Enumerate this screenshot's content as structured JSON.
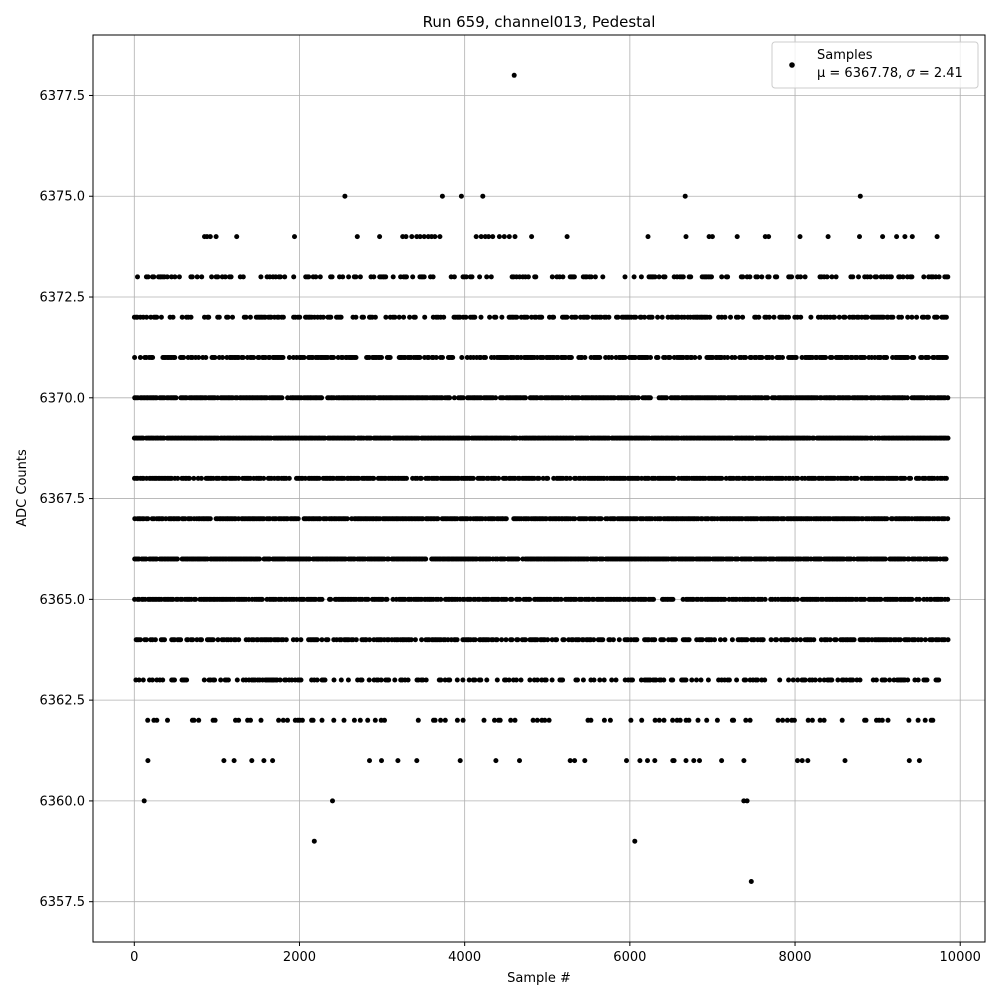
{
  "chart_data": {
    "type": "scatter",
    "title": "Run 659, channel013, Pedestal",
    "xlabel": "Sample #",
    "ylabel": "ADC Counts",
    "xlim": [
      -500,
      10300
    ],
    "ylim": [
      6356.5,
      6379.0
    ],
    "xticks": [
      0,
      2000,
      4000,
      6000,
      8000,
      10000
    ],
    "xtick_labels": [
      "0",
      "2000",
      "4000",
      "6000",
      "8000",
      "10000"
    ],
    "yticks": [
      6357.5,
      6360.0,
      6362.5,
      6365.0,
      6367.5,
      6370.0,
      6372.5,
      6375.0,
      6377.5
    ],
    "ytick_labels": [
      "6357.5",
      "6360.0",
      "6362.5",
      "6365.0",
      "6367.5",
      "6370.0",
      "6372.5",
      "6375.0",
      "6377.5"
    ],
    "grid": true,
    "legend": {
      "placement": "top-right",
      "label": "Samples",
      "stats_prefix": "μ = 6367.78, ",
      "stats_sigma": "σ",
      "stats_suffix": " = 2.41"
    },
    "marker_color": "#000000",
    "x_range": [
      0,
      9850
    ],
    "series": [
      {
        "name": "Samples",
        "level_counts": [
          {
            "y": 6378,
            "x": [
              4600
            ]
          },
          {
            "y": 6375,
            "x": [
              2550,
              3730,
              3960,
              4220,
              6670,
              8790
            ]
          },
          {
            "y": 6374,
            "x": [
              850,
              880,
              920,
              990,
              1240,
              1940,
              2700,
              2970,
              3250,
              3290,
              3360,
              3420,
              3460,
              3510,
              3560,
              3600,
              3640,
              3700,
              4140,
              4200,
              4250,
              4290,
              4340,
              4420,
              4480,
              4540,
              4610,
              4810,
              5240,
              6220,
              6680,
              6960,
              7000,
              7300,
              7640,
              7680,
              8060,
              8400,
              8780,
              9060,
              9230,
              9330,
              9420,
              9720
            ]
          },
          {
            "y": 6360,
            "x": [
              120,
              2400,
              7380,
              7420
            ]
          },
          {
            "y": 6359,
            "x": [
              2180,
              6060
            ]
          },
          {
            "y": 6358,
            "x": [
              7470
            ]
          }
        ],
        "dense_levels": [
          {
            "y": 6373,
            "density": 0.3
          },
          {
            "y": 6372,
            "density": 0.45
          },
          {
            "y": 6371,
            "density": 0.6
          },
          {
            "y": 6370,
            "density": 0.85
          },
          {
            "y": 6369,
            "density": 0.95
          },
          {
            "y": 6368,
            "density": 0.75
          },
          {
            "y": 6367,
            "density": 0.85
          },
          {
            "y": 6366,
            "density": 0.9
          },
          {
            "y": 6365,
            "density": 0.75
          },
          {
            "y": 6364,
            "density": 0.6
          },
          {
            "y": 6363,
            "density": 0.4
          },
          {
            "y": 6362,
            "density": 0.18
          },
          {
            "y": 6361,
            "density": 0.06
          }
        ]
      }
    ]
  }
}
